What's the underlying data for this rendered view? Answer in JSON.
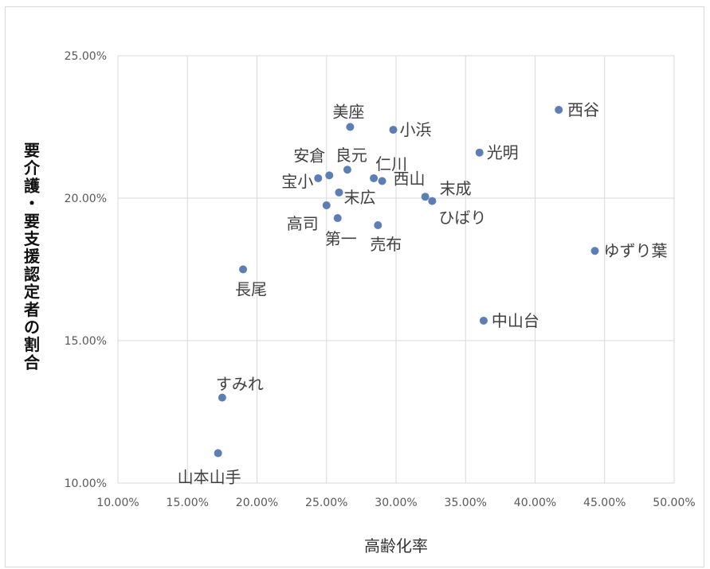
{
  "chart_data": {
    "type": "scatter",
    "xlabel": "高齢化率",
    "ylabel": "要介護・要支援認定者の割合",
    "xlim": [
      10,
      50
    ],
    "ylim": [
      10,
      25
    ],
    "x_ticks": [
      "10.00%",
      "15.00%",
      "20.00%",
      "25.00%",
      "30.00%",
      "35.00%",
      "40.00%",
      "45.00%",
      "50.00%"
    ],
    "y_ticks": [
      "10.00%",
      "15.00%",
      "20.00%",
      "25.00%"
    ],
    "grid": true,
    "marker_color": "#5b7fb5",
    "points": [
      {
        "label": "美座",
        "x": 26.7,
        "y": 22.5
      },
      {
        "label": "小浜",
        "x": 29.8,
        "y": 22.4
      },
      {
        "label": "西谷",
        "x": 41.7,
        "y": 23.1
      },
      {
        "label": "光明",
        "x": 36.0,
        "y": 21.6
      },
      {
        "label": "安倉",
        "x": 25.2,
        "y": 20.8
      },
      {
        "label": "良元",
        "x": 26.5,
        "y": 21.0
      },
      {
        "label": "仁川",
        "x": 28.4,
        "y": 20.7
      },
      {
        "label": "宝小",
        "x": 24.4,
        "y": 20.7
      },
      {
        "label": "西山",
        "x": 29.0,
        "y": 20.6
      },
      {
        "label": "末成",
        "x": 32.1,
        "y": 20.05
      },
      {
        "label": "ひばり",
        "x": 32.6,
        "y": 19.9
      },
      {
        "label": "末広",
        "x": 25.9,
        "y": 20.2
      },
      {
        "label": "高司",
        "x": 25.0,
        "y": 19.75
      },
      {
        "label": "第一",
        "x": 25.8,
        "y": 19.3
      },
      {
        "label": "売布",
        "x": 28.7,
        "y": 19.05
      },
      {
        "label": "ゆずり葉",
        "x": 44.3,
        "y": 18.15
      },
      {
        "label": "長尾",
        "x": 19.0,
        "y": 17.5
      },
      {
        "label": "中山台",
        "x": 36.3,
        "y": 15.7
      },
      {
        "label": "すみれ",
        "x": 17.5,
        "y": 13.0
      },
      {
        "label": "山本山手",
        "x": 17.2,
        "y": 11.05
      }
    ]
  }
}
